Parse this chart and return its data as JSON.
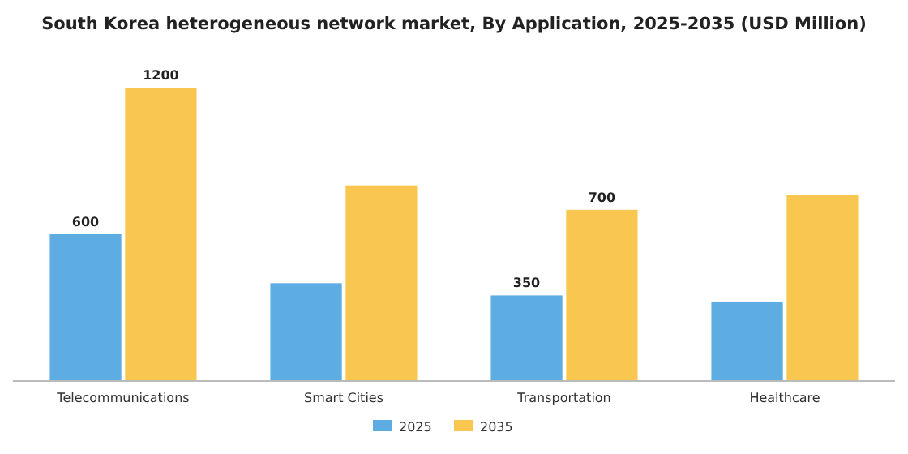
{
  "chart_data": {
    "type": "bar",
    "title": "South Korea heterogeneous network market, By Application, 2025-2035 (USD Million)",
    "categories": [
      "Telecommunications",
      "Smart Cities",
      "Transportation",
      "Healthcare"
    ],
    "series": [
      {
        "name": "2025",
        "color": "#5dade2",
        "values": [
          600,
          400,
          350,
          325
        ],
        "value_labels": [
          "600",
          null,
          "350",
          null
        ]
      },
      {
        "name": "2035",
        "color": "#f9c74f",
        "values": [
          1200,
          800,
          700,
          760
        ],
        "value_labels": [
          "1200",
          null,
          "700",
          null
        ]
      }
    ],
    "legend": "bottom"
  }
}
